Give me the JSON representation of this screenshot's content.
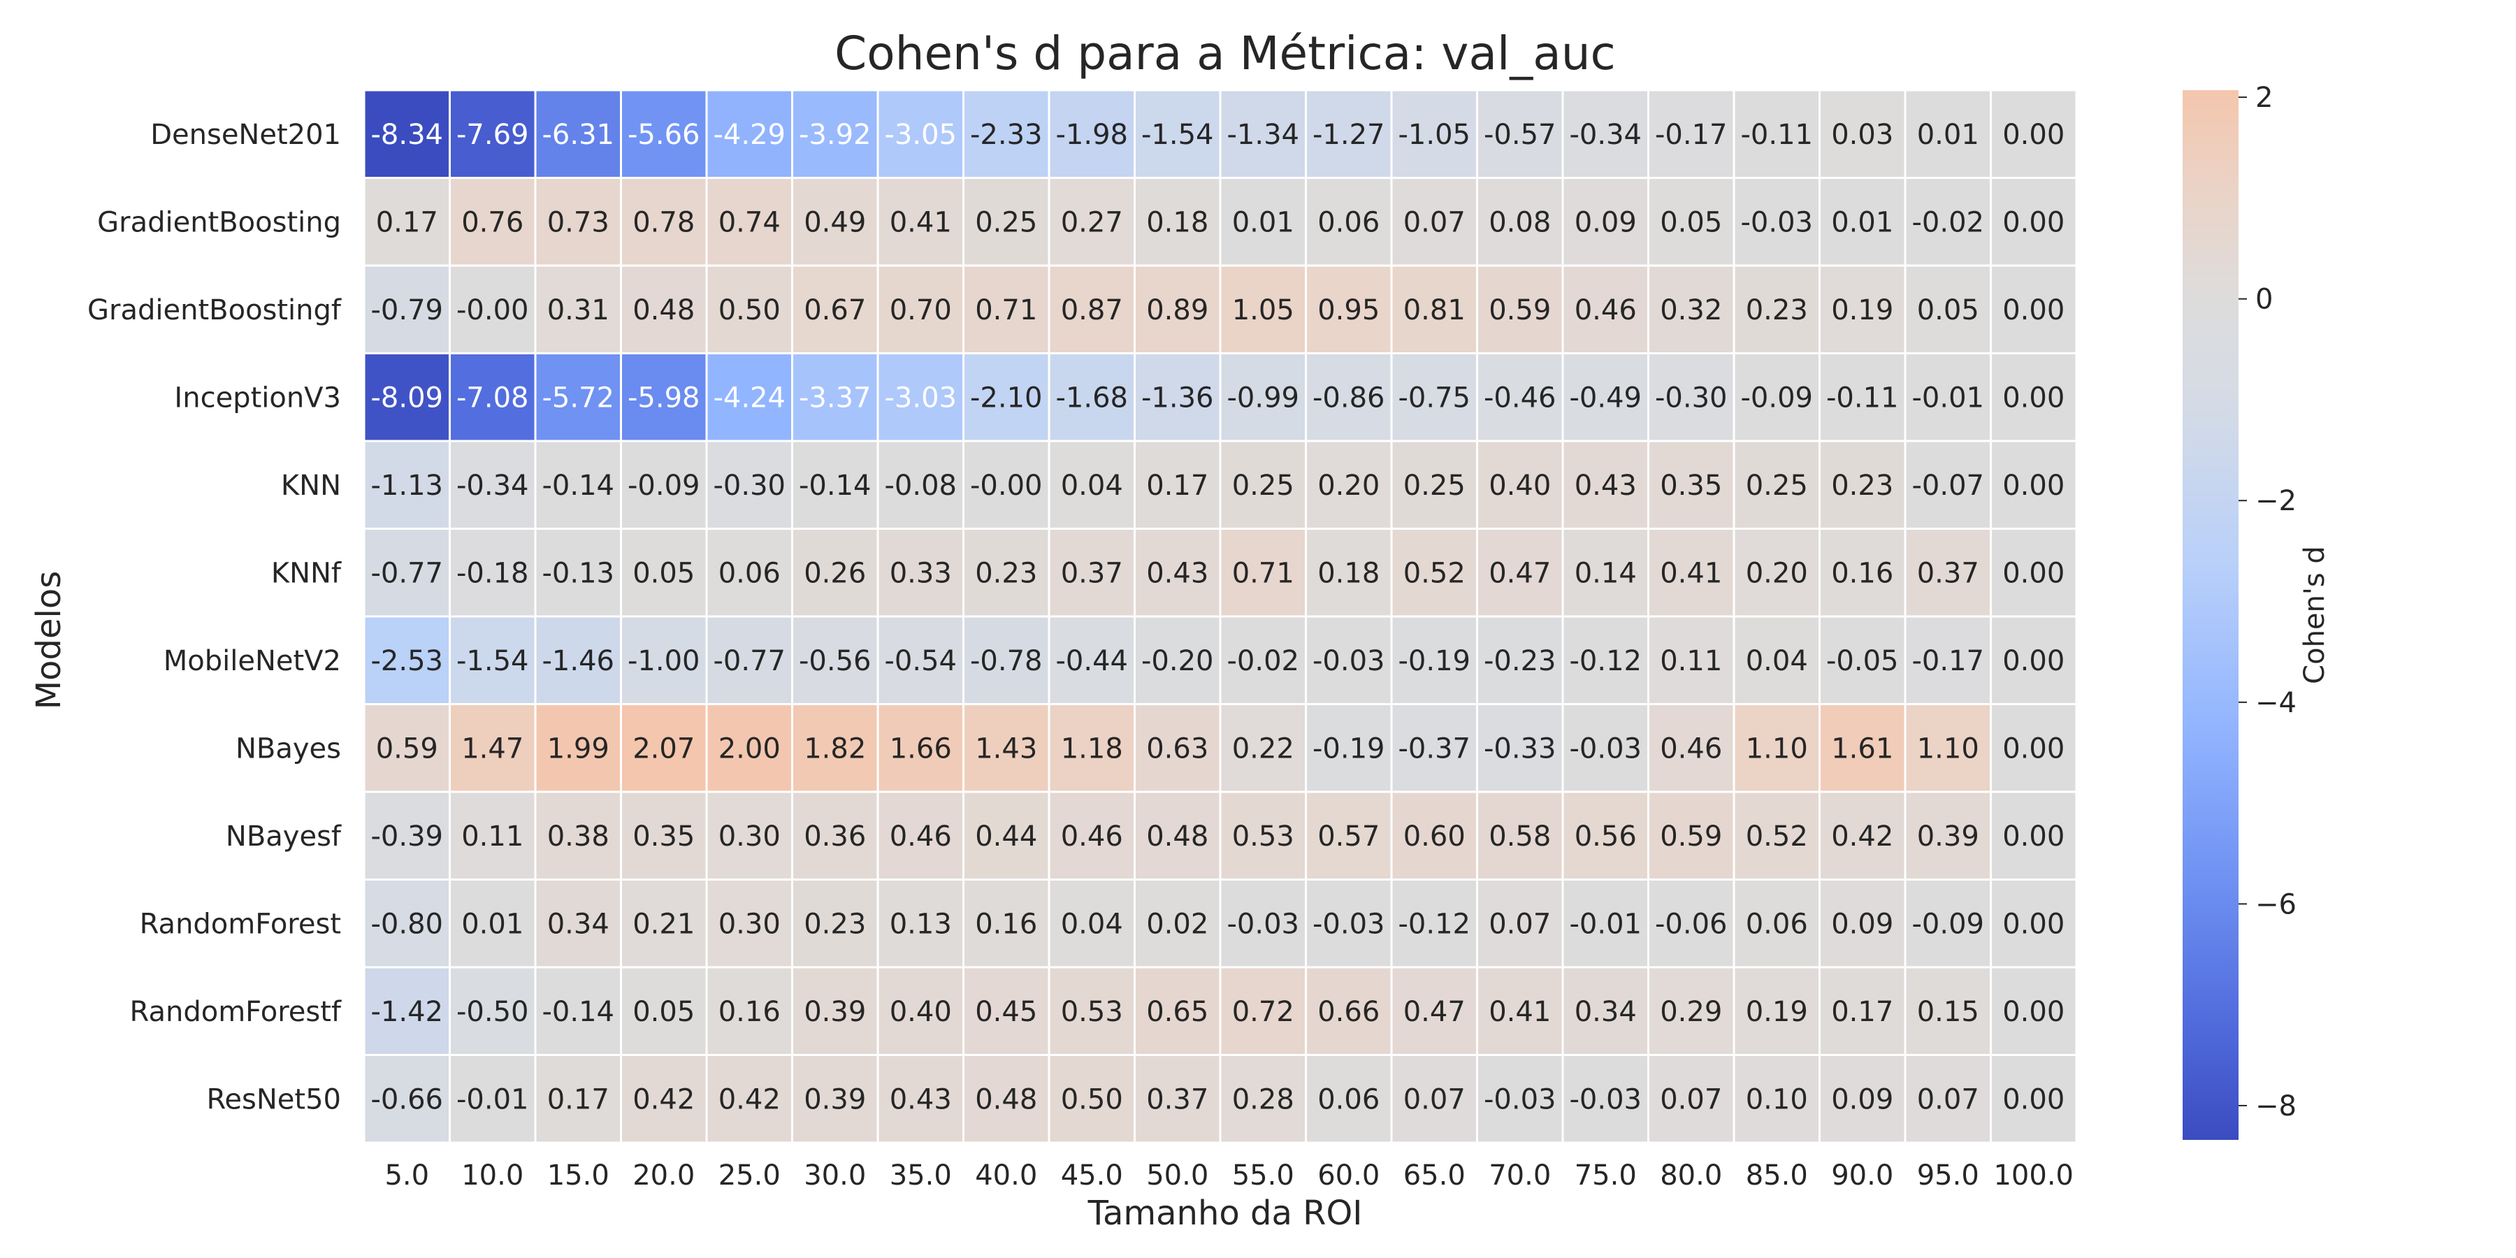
{
  "chart_data": {
    "type": "heatmap",
    "title": "Cohen's d para a Métrica: val_auc",
    "xlabel": "Tamanho da ROI",
    "ylabel": "Modelos",
    "colorbar_label": "Cohen's d",
    "colormap": "coolwarm",
    "vmin": -8.34,
    "vmax": 2.07,
    "colorbar_ticks": [
      "2",
      "0",
      "−2",
      "−4",
      "−6",
      "−8"
    ],
    "colorbar_tick_values": [
      2,
      0,
      -2,
      -4,
      -6,
      -8
    ],
    "x_categories": [
      "5.0",
      "10.0",
      "15.0",
      "20.0",
      "25.0",
      "30.0",
      "35.0",
      "40.0",
      "45.0",
      "50.0",
      "55.0",
      "60.0",
      "65.0",
      "70.0",
      "75.0",
      "80.0",
      "85.0",
      "90.0",
      "95.0",
      "100.0"
    ],
    "y_categories": [
      "DenseNet201",
      "GradientBoosting",
      "GradientBoostingf",
      "InceptionV3",
      "KNN",
      "KNNf",
      "MobileNetV2",
      "NBayes",
      "NBayesf",
      "RandomForest",
      "RandomForestf",
      "ResNet50"
    ],
    "values": [
      [
        -8.34,
        -7.69,
        -6.31,
        -5.66,
        -4.29,
        -3.92,
        -3.05,
        -2.33,
        -1.98,
        -1.54,
        -1.34,
        -1.27,
        -1.05,
        -0.57,
        -0.34,
        -0.17,
        -0.11,
        0.03,
        0.01,
        0.0
      ],
      [
        0.17,
        0.76,
        0.73,
        0.78,
        0.74,
        0.49,
        0.41,
        0.25,
        0.27,
        0.18,
        0.01,
        0.06,
        0.07,
        0.08,
        0.09,
        0.05,
        -0.03,
        0.01,
        -0.02,
        0.0
      ],
      [
        -0.79,
        -0.0,
        0.31,
        0.48,
        0.5,
        0.67,
        0.7,
        0.71,
        0.87,
        0.89,
        1.05,
        0.95,
        0.81,
        0.59,
        0.46,
        0.32,
        0.23,
        0.19,
        0.05,
        0.0
      ],
      [
        -8.09,
        -7.08,
        -5.72,
        -5.98,
        -4.24,
        -3.37,
        -3.03,
        -2.1,
        -1.68,
        -1.36,
        -0.99,
        -0.86,
        -0.75,
        -0.46,
        -0.49,
        -0.3,
        -0.09,
        -0.11,
        -0.01,
        0.0
      ],
      [
        -1.13,
        -0.34,
        -0.14,
        -0.09,
        -0.3,
        -0.14,
        -0.08,
        -0.0,
        0.04,
        0.17,
        0.25,
        0.2,
        0.25,
        0.4,
        0.43,
        0.35,
        0.25,
        0.23,
        -0.07,
        0.0
      ],
      [
        -0.77,
        -0.18,
        -0.13,
        0.05,
        0.06,
        0.26,
        0.33,
        0.23,
        0.37,
        0.43,
        0.71,
        0.18,
        0.52,
        0.47,
        0.14,
        0.41,
        0.2,
        0.16,
        0.37,
        0.0
      ],
      [
        -2.53,
        -1.54,
        -1.46,
        -1.0,
        -0.77,
        -0.56,
        -0.54,
        -0.78,
        -0.44,
        -0.2,
        -0.02,
        -0.03,
        -0.19,
        -0.23,
        -0.12,
        0.11,
        0.04,
        -0.05,
        -0.17,
        0.0
      ],
      [
        0.59,
        1.47,
        1.99,
        2.07,
        2.0,
        1.82,
        1.66,
        1.43,
        1.18,
        0.63,
        0.22,
        -0.19,
        -0.37,
        -0.33,
        -0.03,
        0.46,
        1.1,
        1.61,
        1.1,
        0.0
      ],
      [
        -0.39,
        0.11,
        0.38,
        0.35,
        0.3,
        0.36,
        0.46,
        0.44,
        0.46,
        0.48,
        0.53,
        0.57,
        0.6,
        0.58,
        0.56,
        0.59,
        0.52,
        0.42,
        0.39,
        0.0
      ],
      [
        -0.8,
        0.01,
        0.34,
        0.21,
        0.3,
        0.23,
        0.13,
        0.16,
        0.04,
        0.02,
        -0.03,
        -0.03,
        -0.12,
        0.07,
        -0.01,
        -0.06,
        0.06,
        0.09,
        -0.09,
        0.0
      ],
      [
        -1.42,
        -0.5,
        -0.14,
        0.05,
        0.16,
        0.39,
        0.4,
        0.45,
        0.53,
        0.65,
        0.72,
        0.66,
        0.47,
        0.41,
        0.34,
        0.29,
        0.19,
        0.17,
        0.15,
        0.0
      ],
      [
        -0.66,
        -0.01,
        0.17,
        0.42,
        0.42,
        0.39,
        0.43,
        0.48,
        0.5,
        0.37,
        0.28,
        0.06,
        0.07,
        -0.03,
        -0.03,
        0.07,
        0.1,
        0.09,
        0.07,
        0.0
      ]
    ]
  }
}
